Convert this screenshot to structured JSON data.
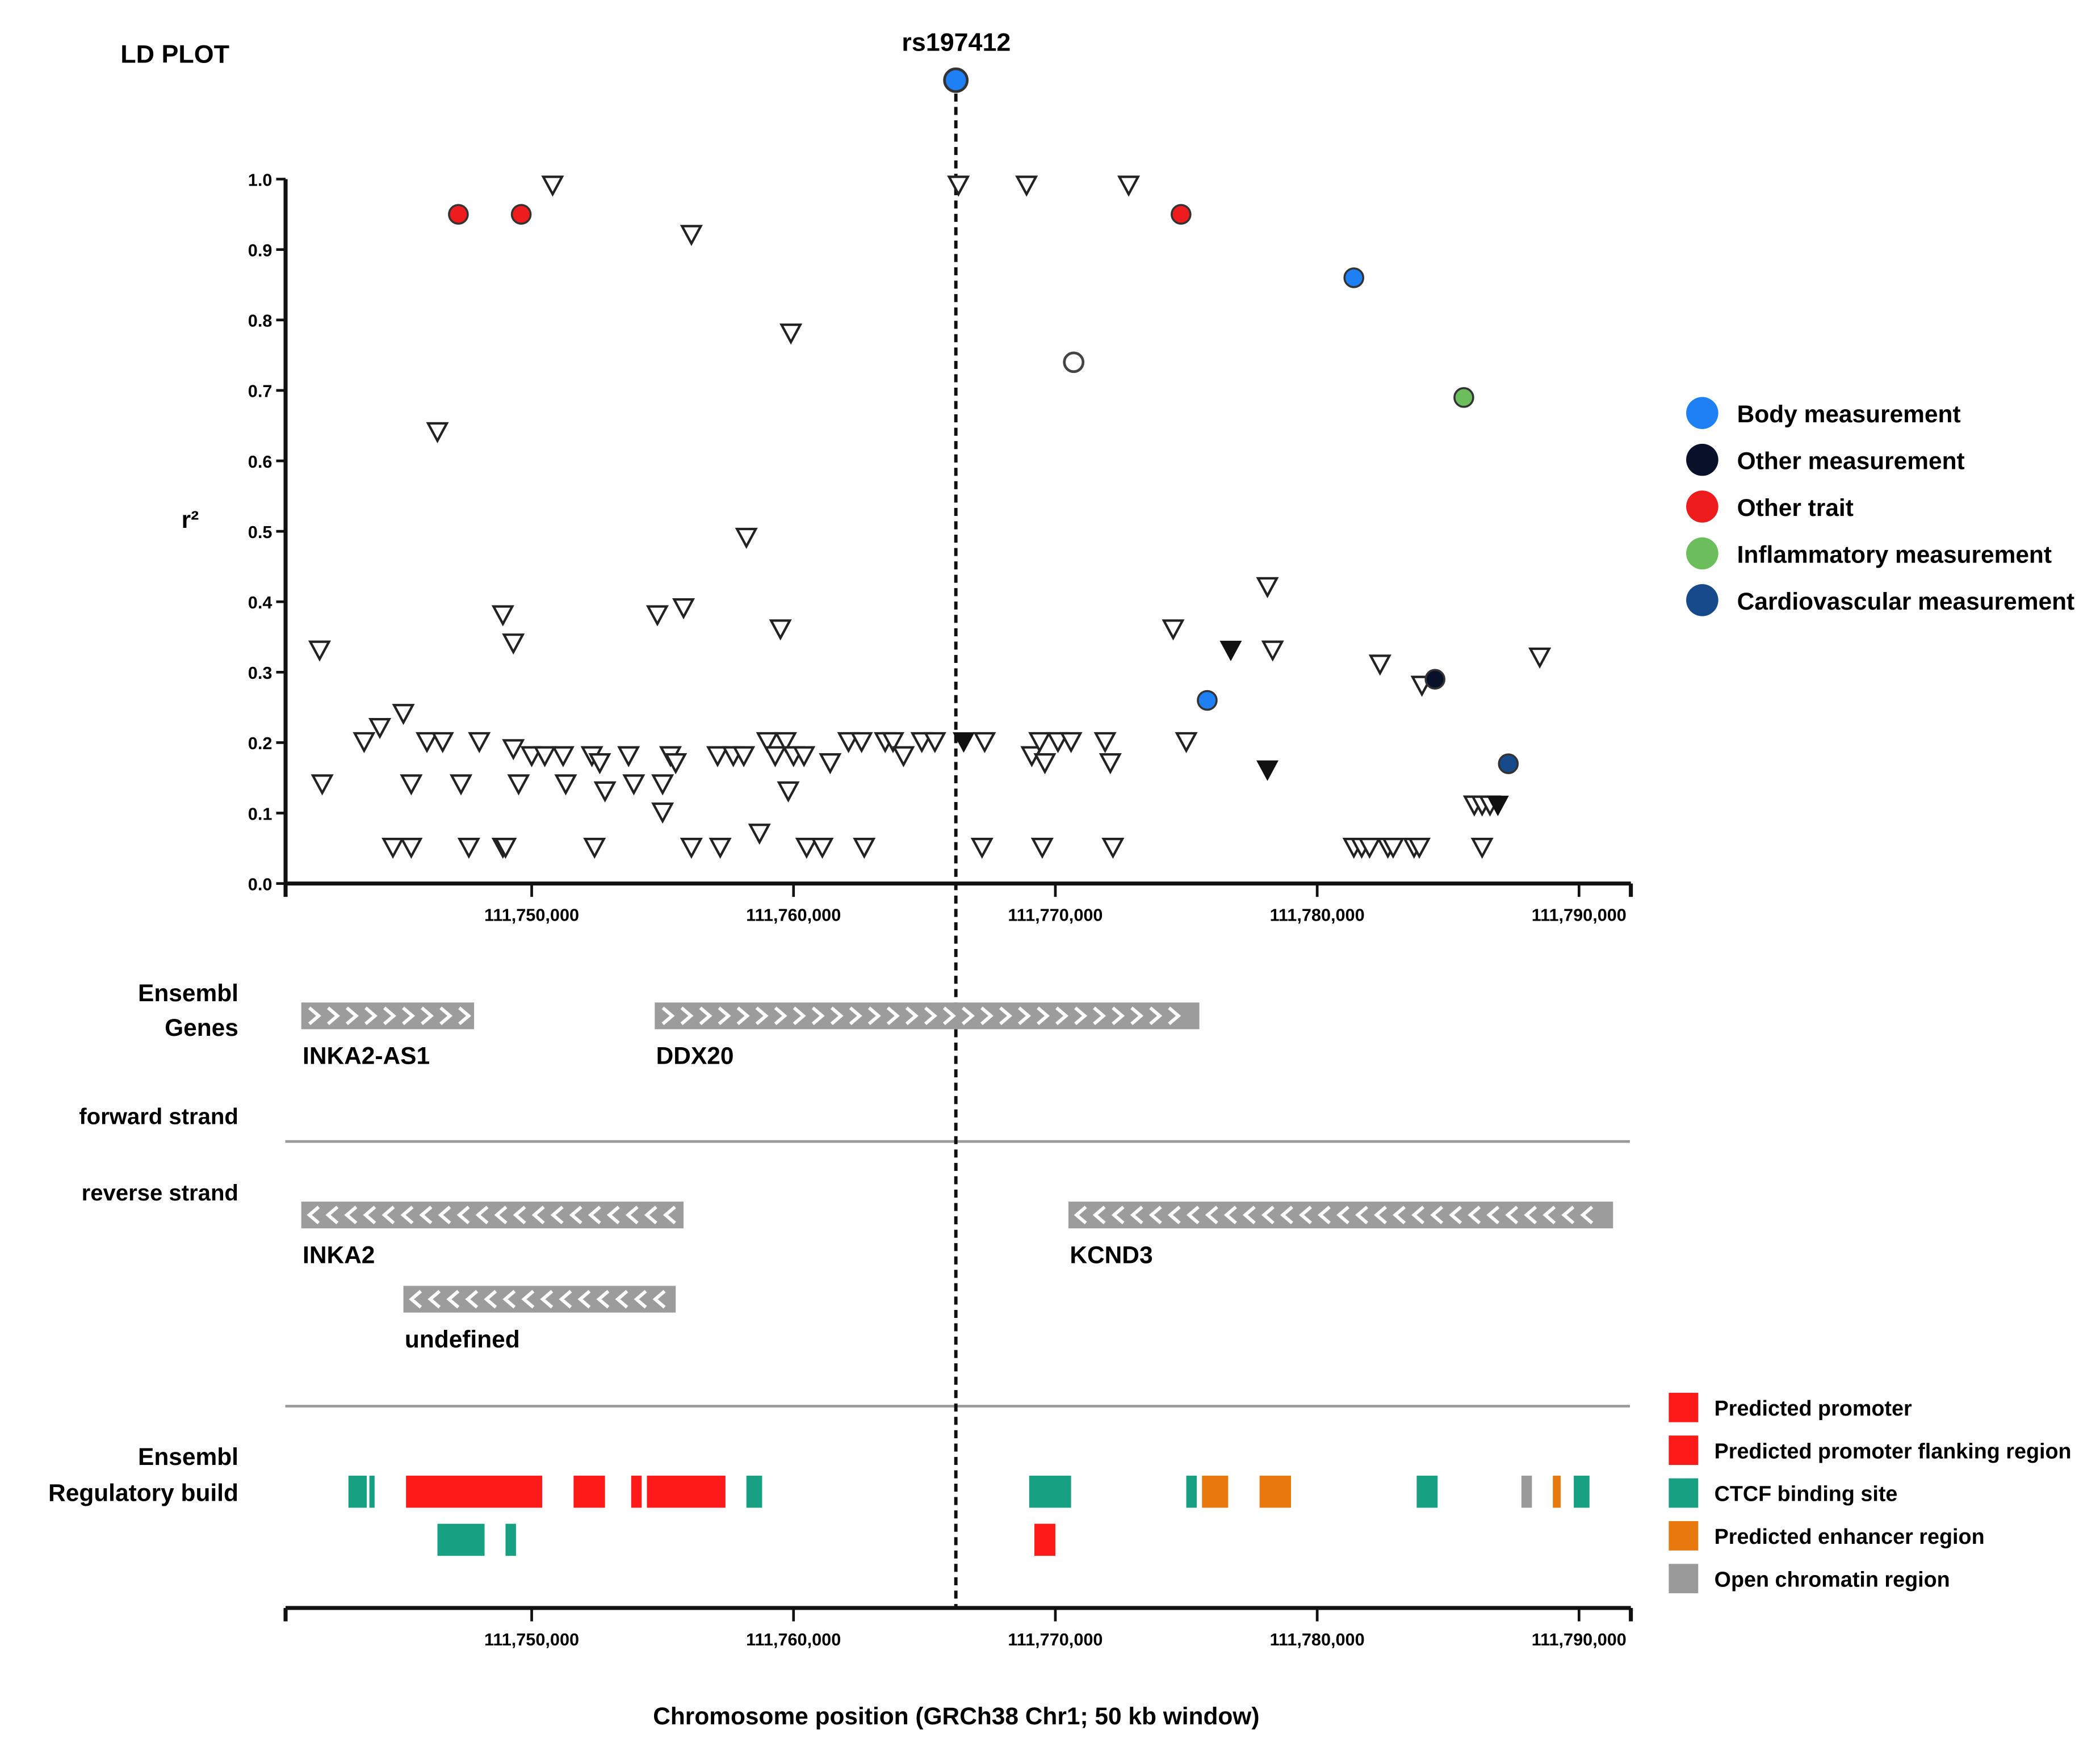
{
  "chart_data": {
    "type": "scatter",
    "title": "LD PLOT",
    "lead_snp": {
      "label": "rs197412",
      "x": 111766.2,
      "category": "Body measurement"
    },
    "ylabel": "r²",
    "xlabel": "Chromosome position (GRCh38 Chr1; 50 kb window)",
    "x_unit": "kb",
    "xlim": [
      111740.6,
      111791.98
    ],
    "ylim": [
      0,
      1
    ],
    "yticks": [
      0,
      0.1,
      0.2,
      0.3,
      0.4,
      0.5,
      0.6,
      0.7,
      0.8,
      0.9,
      1.0
    ],
    "ytick_labels": [
      "0.0",
      "0.1",
      "0.2",
      "0.3",
      "0.4",
      "0.5",
      "0.6",
      "0.7",
      "0.8",
      "0.9",
      "1.0"
    ],
    "xticks": [
      111750,
      111760,
      111770,
      111780,
      111790
    ],
    "xtick_labels": [
      "111,750,000",
      "111,760,000",
      "111,770,000",
      "111,780,000",
      "111,790,000"
    ],
    "open_triangles": [
      [
        111741.9,
        0.33
      ],
      [
        111742.0,
        0.14
      ],
      [
        111743.6,
        0.2
      ],
      [
        111744.2,
        0.22
      ],
      [
        111744.7,
        0.05
      ],
      [
        111745.1,
        0.24
      ],
      [
        111745.4,
        0.05
      ],
      [
        111745.4,
        0.14
      ],
      [
        111746.0,
        0.2
      ],
      [
        111746.4,
        0.64
      ],
      [
        111746.6,
        0.2
      ],
      [
        111747.3,
        0.14
      ],
      [
        111747.6,
        0.05
      ],
      [
        111748.0,
        0.2
      ],
      [
        111748.9,
        0.05
      ],
      [
        111748.9,
        0.38
      ],
      [
        111749.0,
        0.05
      ],
      [
        111749.3,
        0.34
      ],
      [
        111749.3,
        0.19
      ],
      [
        111749.5,
        0.14
      ],
      [
        111750.0,
        0.18
      ],
      [
        111750.5,
        0.18
      ],
      [
        111750.8,
        0.99
      ],
      [
        111751.2,
        0.18
      ],
      [
        111751.3,
        0.14
      ],
      [
        111752.3,
        0.18
      ],
      [
        111752.4,
        0.05
      ],
      [
        111752.6,
        0.17
      ],
      [
        111752.8,
        0.13
      ],
      [
        111753.7,
        0.18
      ],
      [
        111753.9,
        0.14
      ],
      [
        111754.8,
        0.38
      ],
      [
        111755.0,
        0.14
      ],
      [
        111755.0,
        0.1
      ],
      [
        111755.3,
        0.18
      ],
      [
        111755.5,
        0.17
      ],
      [
        111755.8,
        0.39
      ],
      [
        111756.1,
        0.92
      ],
      [
        111756.1,
        0.05
      ],
      [
        111757.1,
        0.18
      ],
      [
        111757.2,
        0.05
      ],
      [
        111757.7,
        0.18
      ],
      [
        111758.1,
        0.18
      ],
      [
        111758.2,
        0.49
      ],
      [
        111758.7,
        0.07
      ],
      [
        111759.0,
        0.2
      ],
      [
        111759.3,
        0.18
      ],
      [
        111759.5,
        0.36
      ],
      [
        111759.7,
        0.2
      ],
      [
        111759.8,
        0.13
      ],
      [
        111759.9,
        0.78
      ],
      [
        111760.0,
        0.18
      ],
      [
        111760.4,
        0.18
      ],
      [
        111760.5,
        0.05
      ],
      [
        111761.1,
        0.05
      ],
      [
        111761.4,
        0.17
      ],
      [
        111762.1,
        0.2
      ],
      [
        111762.6,
        0.2
      ],
      [
        111762.7,
        0.05
      ],
      [
        111763.5,
        0.2
      ],
      [
        111763.8,
        0.2
      ],
      [
        111764.2,
        0.18
      ],
      [
        111764.9,
        0.2
      ],
      [
        111765.4,
        0.2
      ],
      [
        111766.3,
        0.99
      ],
      [
        111767.2,
        0.05
      ],
      [
        111767.3,
        0.2
      ],
      [
        111768.9,
        0.99
      ],
      [
        111769.1,
        0.18
      ],
      [
        111769.4,
        0.2
      ],
      [
        111769.5,
        0.05
      ],
      [
        111769.6,
        0.17
      ],
      [
        111770.1,
        0.2
      ],
      [
        111770.6,
        0.2
      ],
      [
        111771.9,
        0.2
      ],
      [
        111772.1,
        0.17
      ],
      [
        111772.2,
        0.05
      ],
      [
        111772.8,
        0.99
      ],
      [
        111774.5,
        0.36
      ],
      [
        111775.0,
        0.2
      ],
      [
        111778.1,
        0.42
      ],
      [
        111778.3,
        0.33
      ],
      [
        111781.4,
        0.05
      ],
      [
        111781.7,
        0.05
      ],
      [
        111782.0,
        0.05
      ],
      [
        111782.4,
        0.31
      ],
      [
        111782.7,
        0.05
      ],
      [
        111782.9,
        0.05
      ],
      [
        111783.7,
        0.05
      ],
      [
        111783.9,
        0.05
      ],
      [
        111784.0,
        0.28
      ],
      [
        111786.0,
        0.11
      ],
      [
        111786.3,
        0.11
      ],
      [
        111786.3,
        0.05
      ],
      [
        111786.6,
        0.11
      ],
      [
        111788.5,
        0.32
      ]
    ],
    "filled_triangles": [
      [
        111766.5,
        0.2
      ],
      [
        111776.7,
        0.33
      ],
      [
        111778.1,
        0.16
      ],
      [
        111786.9,
        0.11
      ]
    ],
    "open_circles": [
      [
        111770.7,
        0.74
      ]
    ],
    "categories": [
      {
        "name": "Body measurement",
        "color": "#1f80f5",
        "points": [
          [
            111781.4,
            0.86
          ],
          [
            111775.8,
            0.26
          ]
        ]
      },
      {
        "name": "Other measurement",
        "color": "#08102a",
        "points": [
          [
            111784.5,
            0.29
          ]
        ]
      },
      {
        "name": "Other trait",
        "color": "#ee1c1c",
        "points": [
          [
            111747.2,
            0.95
          ],
          [
            111749.6,
            0.95
          ],
          [
            111774.8,
            0.95
          ]
        ]
      },
      {
        "name": "Inflammatory measurement",
        "color": "#6cbd5c",
        "points": [
          [
            111785.6,
            0.69
          ]
        ]
      },
      {
        "name": "Cardiovascular measurement",
        "color": "#174a8a",
        "points": [
          [
            111787.3,
            0.17
          ]
        ]
      }
    ],
    "legend_position": "right"
  },
  "genes": {
    "track_label_1": "Ensembl",
    "track_label_2": "Genes",
    "forward_label": "forward strand",
    "reverse_label": "reverse strand",
    "forward": [
      {
        "name": "INKA2-AS1",
        "start": 111741.2,
        "end": 111747.8,
        "row": 0
      },
      {
        "name": "DDX20",
        "start": 111754.7,
        "end": 111775.5,
        "row": 0
      }
    ],
    "reverse": [
      {
        "name": "INKA2",
        "start": 111741.2,
        "end": 111755.8,
        "row": 0
      },
      {
        "name": "undefined",
        "start": 111745.1,
        "end": 111755.5,
        "row": 1
      },
      {
        "name": "KCND3",
        "start": 111770.5,
        "end": 111791.3,
        "row": 0
      }
    ]
  },
  "regulatory": {
    "track_label_1": "Ensembl",
    "track_label_2": "Regulatory build",
    "legend": [
      {
        "name": "Predicted promoter",
        "color": "#ff1a1a"
      },
      {
        "name": "Predicted promoter flanking region",
        "color": "#ff1a1a"
      },
      {
        "name": "CTCF binding site",
        "color": "#17a082"
      },
      {
        "name": "Predicted enhancer region",
        "color": "#e8790e"
      },
      {
        "name": "Open chromatin region",
        "color": "#9a9a9a"
      }
    ],
    "features": [
      [
        111743.0,
        111743.7,
        0,
        2
      ],
      [
        111743.8,
        111744.0,
        0,
        2
      ],
      [
        111745.2,
        111750.4,
        0,
        1
      ],
      [
        111751.6,
        111752.8,
        0,
        1
      ],
      [
        111753.8,
        111754.2,
        0,
        1
      ],
      [
        111754.4,
        111757.4,
        0,
        1
      ],
      [
        111758.2,
        111758.8,
        0,
        2
      ],
      [
        111769.0,
        111770.6,
        0,
        2
      ],
      [
        111775.0,
        111775.4,
        0,
        2
      ],
      [
        111775.6,
        111776.6,
        0,
        3
      ],
      [
        111777.8,
        111779.0,
        0,
        3
      ],
      [
        111783.8,
        111784.6,
        0,
        2
      ],
      [
        111787.8,
        111788.2,
        0,
        4
      ],
      [
        111789.0,
        111789.3,
        0,
        3
      ],
      [
        111789.8,
        111790.4,
        0,
        2
      ],
      [
        111746.4,
        111748.2,
        1,
        2
      ],
      [
        111749.0,
        111749.4,
        1,
        2
      ],
      [
        111769.2,
        111770.0,
        1,
        1
      ]
    ]
  }
}
